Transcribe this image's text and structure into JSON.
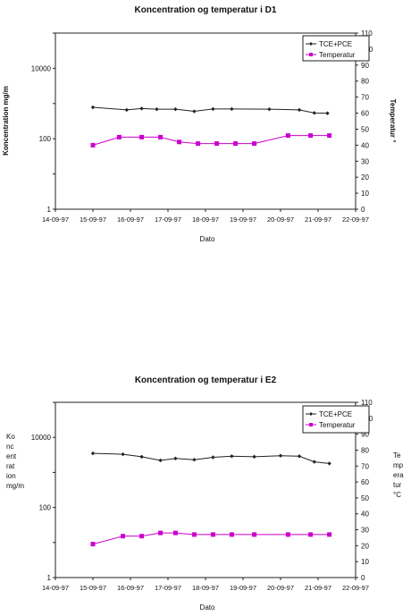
{
  "chart_data": [
    {
      "type": "line",
      "title": "Koncentration og temperatur i D1",
      "xlabel": "Dato",
      "ylabel_left": "Koncentration mg/m",
      "ylabel_right": "Temperatur °",
      "x_ticks": [
        "14-09-97",
        "15-09-97",
        "16-09-97",
        "17-09-97",
        "18-09-97",
        "19-09-97",
        "20-09-97",
        "21-09-97",
        "22-09-97"
      ],
      "x_range": [
        0,
        8
      ],
      "y_left_scale": "log",
      "y_left_range": [
        1,
        100000
      ],
      "y_left_ticks": [
        "1",
        "100",
        "10000"
      ],
      "y_right_range": [
        0,
        110
      ],
      "y_right_ticks": [
        "0",
        "10",
        "20",
        "30",
        "40",
        "50",
        "60",
        "70",
        "80",
        "90",
        "100",
        "110"
      ],
      "grid": false,
      "legend_position": "top-right",
      "series": [
        {
          "name": "TCE+PCE",
          "axis": "left",
          "color": "#222222",
          "marker": "diamond",
          "x": [
            1,
            1.9,
            2.3,
            2.7,
            3.2,
            3.7,
            4.2,
            4.7,
            5.7,
            6.5,
            6.9,
            7.25
          ],
          "y": [
            780,
            660,
            720,
            690,
            690,
            600,
            700,
            700,
            690,
            660,
            540,
            530
          ]
        },
        {
          "name": "Temperatur",
          "axis": "right",
          "color": "#cc00cc",
          "marker": "square",
          "x": [
            1,
            1.7,
            2.3,
            2.8,
            3.3,
            3.8,
            4.3,
            4.8,
            5.3,
            6.2,
            6.8,
            7.3
          ],
          "y": [
            40,
            45,
            45,
            45,
            42,
            41,
            41,
            41,
            41,
            46,
            46,
            46
          ]
        }
      ]
    },
    {
      "type": "line",
      "title": "Koncentration og temperatur i E2",
      "xlabel": "Dato",
      "ylabel_left": "Koncentration mg/m",
      "ylabel_right": "Temperatur °C",
      "x_ticks": [
        "14-09-97",
        "15-09-97",
        "16-09-97",
        "17-09-97",
        "18-09-97",
        "19-09-97",
        "20-09-97",
        "21-09-97",
        "22-09-97"
      ],
      "x_range": [
        0,
        8
      ],
      "y_left_scale": "log",
      "y_left_range": [
        1,
        100000
      ],
      "y_left_ticks": [
        "1",
        "100",
        "10000"
      ],
      "y_right_range": [
        0,
        110
      ],
      "y_right_ticks": [
        "0",
        "10",
        "20",
        "30",
        "40",
        "50",
        "60",
        "70",
        "80",
        "90",
        "100",
        "110"
      ],
      "grid": false,
      "legend_position": "top-right",
      "series": [
        {
          "name": "TCE+PCE",
          "axis": "left",
          "color": "#222222",
          "marker": "diamond",
          "x": [
            1,
            1.8,
            2.3,
            2.8,
            3.2,
            3.7,
            4.2,
            4.7,
            5.3,
            6.0,
            6.5,
            6.9,
            7.3
          ],
          "y": [
            3500,
            3300,
            2800,
            2200,
            2500,
            2300,
            2700,
            2900,
            2800,
            3000,
            2900,
            2000,
            1800
          ]
        },
        {
          "name": "Temperatur",
          "axis": "right",
          "color": "#cc00cc",
          "marker": "square",
          "x": [
            1,
            1.8,
            2.3,
            2.8,
            3.2,
            3.7,
            4.2,
            4.7,
            5.3,
            6.2,
            6.8,
            7.3
          ],
          "y": [
            21,
            26,
            26,
            28,
            28,
            27,
            27,
            27,
            27,
            27,
            27,
            27
          ]
        }
      ]
    }
  ]
}
